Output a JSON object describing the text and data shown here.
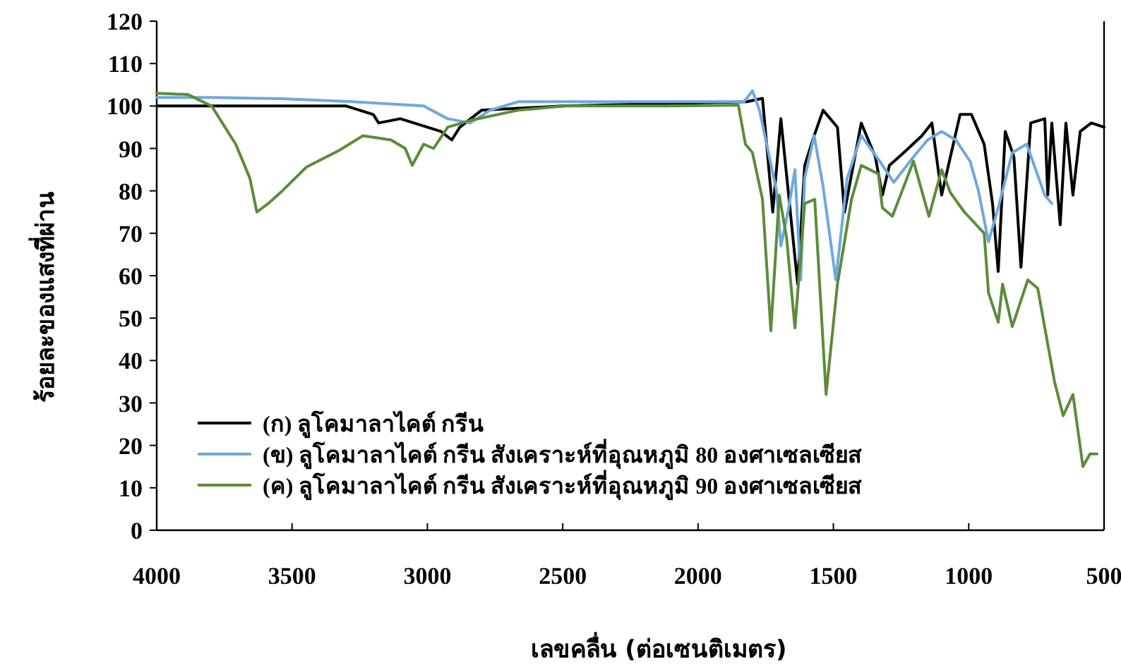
{
  "chart_data": {
    "type": "line",
    "xlabel": "เลขคลื่น (ต่อเซนติเมตร)",
    "ylabel": "ร้อยละของแสงที่ผ่าน",
    "xlim": [
      4000,
      500
    ],
    "xticks": [
      4000,
      3500,
      3000,
      2500,
      2000,
      1500,
      1000,
      500
    ],
    "ylim": [
      0,
      120
    ],
    "yticks": [
      0,
      10,
      20,
      30,
      40,
      50,
      60,
      70,
      80,
      90,
      100,
      110,
      120
    ],
    "grid": false,
    "legend": "bottom left",
    "marker": "none",
    "line_style": "solid",
    "series": [
      {
        "name": "(ก) ลูโคมาลาไคต์ กรีน",
        "color": "#000000",
        "x": [
          4000,
          3800,
          3300,
          3200,
          3180,
          3100,
          3000,
          2950,
          2910,
          2880,
          2800,
          2500,
          1820,
          1762,
          1724,
          1694,
          1632,
          1606,
          1571,
          1538,
          1485,
          1459,
          1397,
          1345,
          1319,
          1293,
          1240,
          1173,
          1136,
          1100,
          1032,
          990,
          943,
          912,
          891,
          865,
          833,
          807,
          771,
          719,
          708,
          693,
          662,
          641,
          615,
          588,
          547,
          500
        ],
        "values": [
          100,
          100,
          100,
          98,
          96,
          97,
          95,
          94,
          92,
          95,
          99,
          100,
          101,
          101.8,
          75,
          97,
          58,
          86,
          93,
          99,
          95,
          75,
          96,
          88,
          79,
          86,
          89,
          93,
          96,
          79,
          98,
          98,
          91,
          77,
          61,
          94,
          88,
          62,
          96,
          97,
          79,
          96,
          72,
          96,
          79,
          94,
          96,
          95
        ]
      },
      {
        "name": "(ข) ลูโคมาลาไคต์ กรีน สังเคราะห์ที่อุณหภูมิ 80 องศาเซลเซียส",
        "color": "#6fa8dc",
        "x": [
          4000,
          3797,
          3536,
          3275,
          3014,
          2925,
          2842,
          2769,
          2665,
          2300,
          2000,
          1830,
          1799,
          1773,
          1710,
          1694,
          1668,
          1642,
          1621,
          1606,
          1571,
          1538,
          1491,
          1449,
          1397,
          1329,
          1277,
          1204,
          1152,
          1100,
          1048,
          995,
          964,
          927,
          891,
          839,
          786,
          719,
          693
        ],
        "values": [
          102,
          102,
          101.7,
          101,
          100,
          97,
          96,
          99,
          101,
          101,
          101,
          101,
          103.6,
          99,
          80,
          67,
          75,
          85,
          59,
          83,
          93,
          81,
          59,
          83,
          93,
          87,
          82,
          88,
          92,
          94,
          92,
          87,
          80,
          68,
          76,
          89,
          91,
          79,
          77
        ]
      },
      {
        "name": "(ค) ลูโคมาลาไคต์ กรีน สังเคราะห์ที่อุณหภูมิ 90 องศาเซลเซียส",
        "color": "#5b8c3a",
        "x": [
          4000,
          3885,
          3797,
          3708,
          3656,
          3630,
          3588,
          3536,
          3447,
          3327,
          3238,
          3134,
          3082,
          3056,
          3014,
          2977,
          2925,
          2842,
          2665,
          2492,
          2100,
          1851,
          1825,
          1799,
          1762,
          1731,
          1700,
          1673,
          1642,
          1606,
          1569,
          1527,
          1485,
          1433,
          1397,
          1334,
          1319,
          1282,
          1204,
          1147,
          1100,
          1068,
          1016,
          943,
          927,
          891,
          875,
          839,
          782,
          745,
          683,
          651,
          615,
          578,
          552,
          526
        ],
        "values": [
          103,
          102.7,
          100,
          91,
          83,
          75,
          77,
          80,
          85.6,
          89.5,
          93,
          92,
          90,
          86,
          91,
          90,
          95,
          96.6,
          99,
          100,
          100,
          100.2,
          91,
          89,
          78,
          47,
          79,
          69,
          47.7,
          77,
          78,
          32,
          58,
          78,
          86,
          84,
          76,
          74,
          87,
          74,
          85,
          79.6,
          75,
          70,
          56,
          49,
          58,
          48,
          59,
          57,
          35,
          27,
          32,
          15,
          18,
          18
        ]
      }
    ]
  }
}
